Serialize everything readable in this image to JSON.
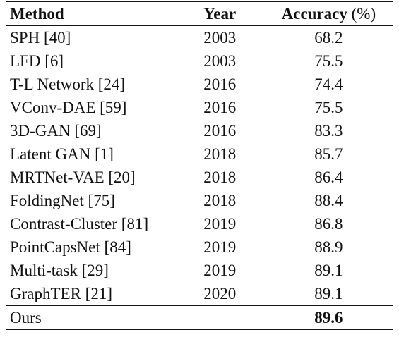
{
  "table": {
    "headers": {
      "method": "Method",
      "year": "Year",
      "accuracy": "Accuracy",
      "accuracy_unit": "(%)"
    },
    "rows": [
      {
        "method": "SPH [40]",
        "year": "2003",
        "accuracy": "68.2"
      },
      {
        "method": "LFD [6]",
        "year": "2003",
        "accuracy": "75.5"
      },
      {
        "method": "T-L Network [24]",
        "year": "2016",
        "accuracy": "74.4"
      },
      {
        "method": "VConv-DAE [59]",
        "year": "2016",
        "accuracy": "75.5"
      },
      {
        "method": "3D-GAN [69]",
        "year": "2016",
        "accuracy": "83.3"
      },
      {
        "method": "Latent GAN [1]",
        "year": "2018",
        "accuracy": "85.7"
      },
      {
        "method": "MRTNet-VAE [20]",
        "year": "2018",
        "accuracy": "86.4"
      },
      {
        "method": "FoldingNet [75]",
        "year": "2018",
        "accuracy": "88.4"
      },
      {
        "method": "Contrast-Cluster [81]",
        "year": "2019",
        "accuracy": "86.8"
      },
      {
        "method": "PointCapsNet [84]",
        "year": "2019",
        "accuracy": "88.9"
      },
      {
        "method": "Multi-task [29]",
        "year": "2019",
        "accuracy": "89.1"
      },
      {
        "method": "GraphTER [21]",
        "year": "2020",
        "accuracy": "89.1"
      }
    ],
    "final_row": {
      "method": "Ours",
      "year": "",
      "accuracy": "89.6"
    }
  }
}
